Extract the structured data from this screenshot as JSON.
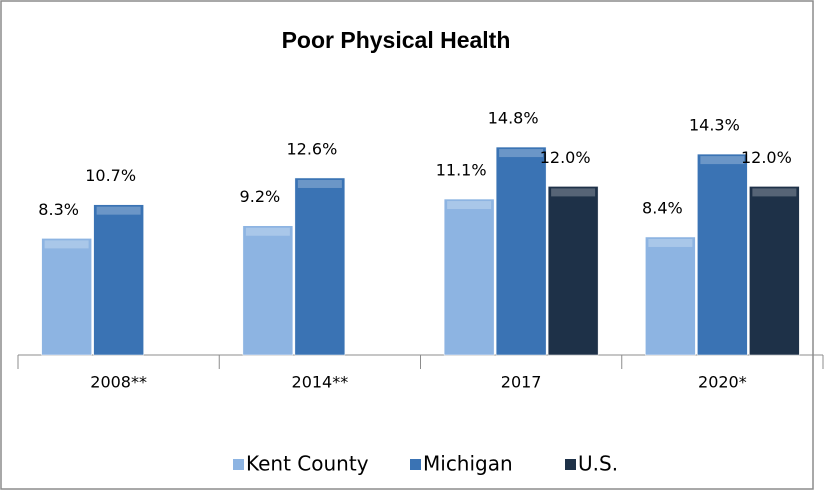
{
  "chart_data": {
    "type": "bar",
    "title": "Poor Physical Health",
    "categories": [
      "2008**",
      "2014**",
      "2017",
      "2020*"
    ],
    "series": [
      {
        "name": "Kent County",
        "color": "#8db4e2",
        "values": [
          8.3,
          9.2,
          11.1,
          8.4
        ],
        "value_labels": [
          "8.3%",
          "9.2%",
          "11.1%",
          "8.4%"
        ]
      },
      {
        "name": "Michigan",
        "color": "#3a73b4",
        "values": [
          10.7,
          12.6,
          14.8,
          14.3
        ],
        "value_labels": [
          "10.7%",
          "12.6%",
          "14.8%",
          "14.3%"
        ]
      },
      {
        "name": "U.S.",
        "color": "#1e3148",
        "values": [
          null,
          null,
          12.0,
          12.0
        ],
        "value_labels": [
          null,
          null,
          "12.0%",
          "12.0%"
        ]
      }
    ],
    "ylim": [
      0,
      20
    ],
    "legend": "bottom"
  }
}
